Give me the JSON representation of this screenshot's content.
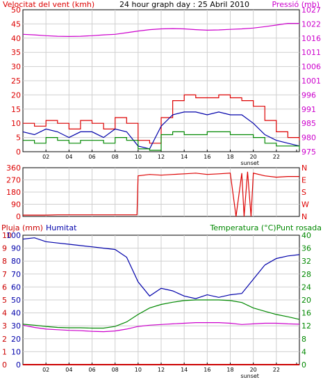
{
  "chart_data": {
    "type": "line",
    "title": "24 hour graph day : 25 Abril 2010",
    "colors": {
      "wind": "#dd0000",
      "pressure": "#cc00cc",
      "humidity": "#0000aa",
      "temperature": "#008800",
      "dewpoint": "#cc00cc",
      "rain": "#cc0000",
      "direction": "#dd0000"
    },
    "x_ticks": [
      "02",
      "04",
      "06",
      "08",
      "10",
      "12",
      "14",
      "16",
      "18",
      "20",
      "22"
    ],
    "x_range_hours": [
      0,
      24
    ],
    "sunset_label": "sunset",
    "sunset_hour": 20,
    "panel_wind": {
      "left_label": "Velocitat del vent (kmh)",
      "right_label": "Pressió (mb)",
      "left_ticks": [
        "0",
        "5",
        "10",
        "15",
        "20",
        "25",
        "30",
        "35",
        "40",
        "45",
        "50"
      ],
      "left_range": [
        0,
        50
      ],
      "right_ticks": [
        "975",
        "980",
        "985",
        "991",
        "996",
        "1001",
        "1006",
        "1011",
        "1016",
        "1022",
        "1027"
      ],
      "right_range": [
        975,
        1027
      ],
      "series": [
        {
          "name": "pressure",
          "x": [
            0,
            1,
            2,
            3,
            4,
            5,
            6,
            7,
            8,
            9,
            10,
            11,
            12,
            13,
            14,
            15,
            16,
            17,
            18,
            19,
            20,
            21,
            22,
            23,
            24
          ],
          "values": [
            1018,
            1017.8,
            1017.5,
            1017.3,
            1017.2,
            1017.3,
            1017.5,
            1017.8,
            1018,
            1018.6,
            1019.2,
            1019.7,
            1020,
            1020.1,
            1020,
            1019.7,
            1019.5,
            1019.6,
            1019.8,
            1020,
            1020.3,
            1020.8,
            1021.4,
            1022,
            1022
          ]
        },
        {
          "name": "gust",
          "x": [
            0,
            1,
            2,
            3,
            4,
            5,
            6,
            7,
            8,
            9,
            10,
            11,
            12,
            13,
            14,
            15,
            16,
            17,
            18,
            19,
            20,
            21,
            22,
            23,
            24
          ],
          "values": [
            10,
            9,
            11,
            10,
            8,
            11,
            10,
            8,
            12,
            10,
            4,
            3,
            12,
            18,
            20,
            19,
            19,
            20,
            19,
            18,
            16,
            11,
            7,
            5,
            4
          ]
        },
        {
          "name": "wind",
          "x": [
            0,
            1,
            2,
            3,
            4,
            5,
            6,
            7,
            8,
            9,
            10,
            11,
            12,
            13,
            14,
            15,
            16,
            17,
            18,
            19,
            20,
            21,
            22,
            23,
            24
          ],
          "values": [
            7,
            6,
            8,
            7,
            5,
            7,
            7,
            5,
            8,
            7,
            2,
            1,
            9,
            13,
            14,
            14,
            13,
            14,
            13,
            13,
            10,
            6,
            4,
            3,
            2
          ]
        },
        {
          "name": "wind_avg",
          "x": [
            0,
            1,
            2,
            3,
            4,
            5,
            6,
            7,
            8,
            9,
            10,
            11,
            12,
            13,
            14,
            15,
            16,
            17,
            18,
            19,
            20,
            21,
            22,
            23,
            24
          ],
          "values": [
            4,
            3,
            5,
            4,
            3,
            4,
            4,
            3,
            5,
            4,
            1,
            0.5,
            6,
            7,
            6,
            6,
            7,
            7,
            6,
            6,
            5,
            3,
            2,
            2,
            1
          ]
        }
      ]
    },
    "panel_direction": {
      "left_ticks": [
        "0",
        "90",
        "180",
        "270",
        "360"
      ],
      "left_range": [
        0,
        360
      ],
      "right_ticks": [
        "N",
        "W",
        "S",
        "E",
        "N"
      ],
      "series": [
        {
          "name": "direction",
          "x": [
            0,
            1,
            2,
            3,
            4,
            5,
            6,
            7,
            8,
            9,
            9.9,
            10,
            11,
            12,
            13,
            14,
            15,
            16,
            17,
            18,
            18.5,
            19,
            19.2,
            19.5,
            19.8,
            20,
            21,
            22,
            23,
            24
          ],
          "values": [
            10,
            10,
            10,
            12,
            12,
            12,
            12,
            12,
            12,
            12,
            12,
            300,
            310,
            305,
            310,
            315,
            320,
            310,
            315,
            320,
            0,
            320,
            0,
            330,
            0,
            320,
            300,
            290,
            295,
            295
          ]
        }
      ]
    },
    "panel_temp": {
      "left_label_rain": "Pluja (mm)",
      "left_label_humidity": "Humitat",
      "right_label": "Temperatura (°C)Punt rosada",
      "rain_ticks": [
        "0",
        "1",
        "2",
        "3",
        "4",
        "5",
        "6",
        "7",
        "8",
        "9",
        "10"
      ],
      "humidity_ticks": [
        "0",
        "10",
        "20",
        "30",
        "40",
        "50",
        "60",
        "70",
        "80",
        "90",
        "100"
      ],
      "right_ticks": [
        "0",
        "4",
        "8",
        "12",
        "16",
        "20",
        "24",
        "28",
        "32",
        "36",
        "40"
      ],
      "humidity_range": [
        0,
        100
      ],
      "right_range": [
        0,
        40
      ],
      "series": [
        {
          "name": "humidity",
          "x": [
            0,
            1,
            2,
            3,
            4,
            5,
            6,
            7,
            8,
            9,
            10,
            11,
            12,
            13,
            14,
            15,
            16,
            17,
            18,
            19,
            20,
            21,
            22,
            23,
            24
          ],
          "values": [
            97,
            98,
            95,
            94,
            93,
            92,
            91,
            90,
            89,
            83,
            64,
            53,
            59,
            57,
            53,
            51,
            54,
            52,
            54,
            55,
            66,
            77,
            82,
            84,
            85
          ]
        },
        {
          "name": "temperature",
          "x": [
            0,
            1,
            2,
            3,
            4,
            5,
            6,
            7,
            8,
            9,
            10,
            11,
            12,
            13,
            14,
            15,
            16,
            17,
            18,
            19,
            20,
            21,
            22,
            23,
            24
          ],
          "values": [
            12.5,
            12.2,
            11.8,
            11.5,
            11.4,
            11.4,
            11.3,
            11.3,
            11.8,
            13.2,
            15.5,
            17.5,
            18.6,
            19.3,
            19.8,
            20,
            20,
            20,
            19.8,
            19.2,
            17.5,
            16.5,
            15.5,
            14.8,
            14
          ]
        },
        {
          "name": "dewpoint",
          "x": [
            0,
            1,
            2,
            3,
            4,
            5,
            6,
            7,
            8,
            9,
            10,
            11,
            12,
            13,
            14,
            15,
            16,
            17,
            18,
            19,
            20,
            21,
            22,
            23,
            24
          ],
          "values": [
            12.2,
            11.5,
            11,
            10.8,
            10.6,
            10.5,
            10.3,
            10.2,
            10.4,
            11,
            11.8,
            12.2,
            12.4,
            12.6,
            12.8,
            13,
            13,
            13,
            12.8,
            12.4,
            12.6,
            12.8,
            12.8,
            12.6,
            12.5
          ]
        },
        {
          "name": "rain",
          "x": [
            0,
            24
          ],
          "values": [
            0,
            0
          ]
        }
      ]
    }
  }
}
